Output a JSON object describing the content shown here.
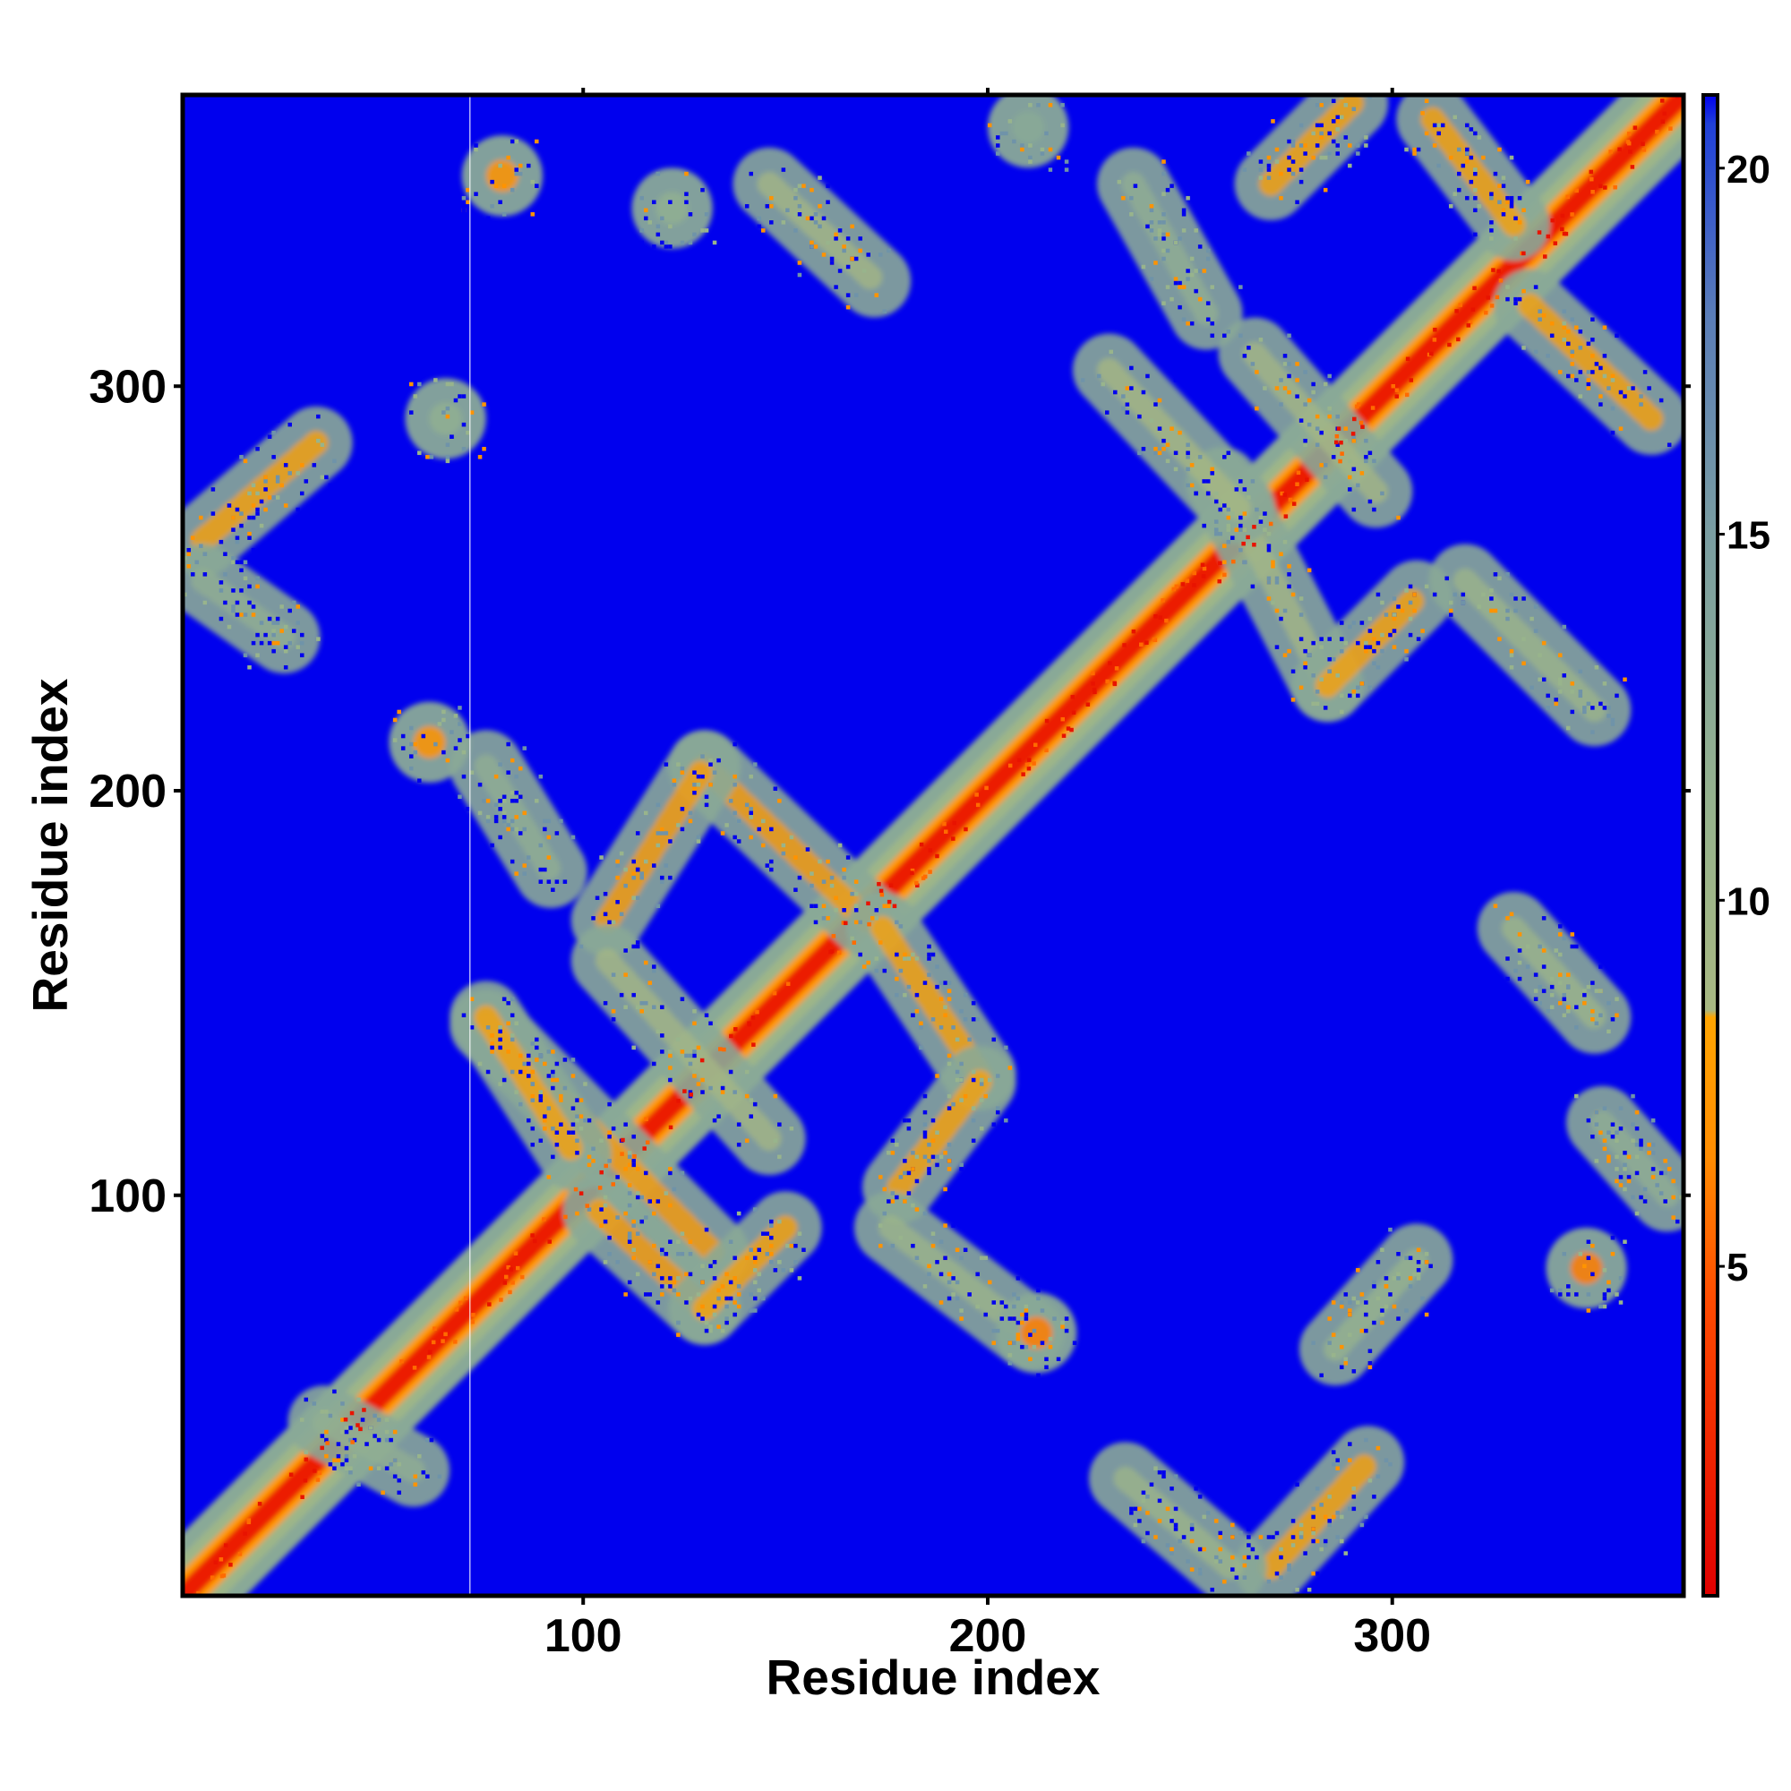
{
  "chart_data": {
    "type": "heatmap",
    "title": "",
    "xlabel": "Residue index",
    "ylabel": "Residue index",
    "xlim": [
      1,
      372
    ],
    "ylim": [
      1,
      372
    ],
    "x_ticks": [
      100,
      200,
      300
    ],
    "y_ticks": [
      100,
      200,
      300
    ],
    "colorbar": {
      "range": [
        0.5,
        21
      ],
      "ticks": [
        5,
        10,
        15,
        20
      ],
      "stops": [
        {
          "value": 0.5,
          "color": "#e00000"
        },
        {
          "value": 4.5,
          "color": "#ff4a00"
        },
        {
          "value": 6.5,
          "color": "#ff8c00"
        },
        {
          "value": 8.4,
          "color": "#ffa500"
        },
        {
          "value": 8.5,
          "color": "#a8b882"
        },
        {
          "value": 11.0,
          "color": "#98b48c"
        },
        {
          "value": 15.0,
          "color": "#7a9ea2"
        },
        {
          "value": 18.0,
          "color": "#5a7db8"
        },
        {
          "value": 20.6,
          "color": "#2040d8"
        },
        {
          "value": 21.0,
          "color": "#0000ee"
        }
      ]
    },
    "background_value": 21,
    "background_color": "#0000ee",
    "diagonal": {
      "band_halfwidth": 11,
      "core_value": 2
    },
    "contact_bands": [
      {
        "x": [
          76,
          132
        ],
        "y": [
          142,
          86
        ],
        "value": 7.5
      },
      {
        "x": [
          130,
          170
        ],
        "y": [
          206,
          168
        ],
        "value": 7.5
      },
      {
        "x": [
          106,
          130
        ],
        "y": [
          168,
          206
        ],
        "value": 7.5
      },
      {
        "x": [
          174,
          198
        ],
        "y": [
          166,
          130
        ],
        "value": 8
      },
      {
        "x": [
          198,
          178
        ],
        "y": [
          128,
          102
        ],
        "value": 8
      },
      {
        "x": [
          106,
          146
        ],
        "y": [
          158,
          114
        ],
        "value": 9
      },
      {
        "x": [
          104,
          130
        ],
        "y": [
          96,
          72
        ],
        "value": 7.5
      },
      {
        "x": [
          130,
          150
        ],
        "y": [
          72,
          92
        ],
        "value": 8
      },
      {
        "x": [
          76,
          98
        ],
        "y": [
          144,
          110
        ],
        "value": 8
      },
      {
        "x": [
          176,
          210
        ],
        "y": [
          92,
          66
        ],
        "value": 10
      },
      {
        "x": [
          270,
          294
        ],
        "y": [
          8,
          34
        ],
        "value": 8
      },
      {
        "x": [
          260,
          234
        ],
        "y": [
          8,
          30
        ],
        "value": 10
      },
      {
        "x": [
          286,
          306
        ],
        "y": [
          62,
          84
        ],
        "value": 11
      },
      {
        "x": [
          258,
          284
        ],
        "y": [
          276,
          226
        ],
        "value": 9
      },
      {
        "x": [
          284,
          306
        ],
        "y": [
          226,
          248
        ],
        "value": 8
      },
      {
        "x": [
          230,
          262
        ],
        "y": [
          304,
          270
        ],
        "value": 8.5
      },
      {
        "x": [
          266,
          296
        ],
        "y": [
          308,
          274
        ],
        "value": 9
      },
      {
        "x": [
          270,
          290
        ],
        "y": [
          350,
          370
        ],
        "value": 8
      },
      {
        "x": [
          310,
          330
        ],
        "y": [
          366,
          340
        ],
        "value": 8
      },
      {
        "x": [
          334,
          364
        ],
        "y": [
          320,
          292
        ],
        "value": 8
      },
      {
        "x": [
          318,
          350
        ],
        "y": [
          252,
          220
        ],
        "value": 10
      },
      {
        "x": [
          6,
          34
        ],
        "y": [
          262,
          286
        ],
        "value": 8
      },
      {
        "x": 66,
        "y": 292,
        "value": 12
      },
      {
        "x": [
          146,
          172
        ],
        "y": [
          350,
          326
        ],
        "value": 9
      },
      {
        "x": 122,
        "y": 344,
        "value": 12
      },
      {
        "x": 80,
        "y": 352,
        "value": 7
      },
      {
        "x": 348,
        "y": 82,
        "value": 6
      },
      {
        "x": 212,
        "y": 66,
        "value": 6
      },
      {
        "x": 62,
        "y": 212,
        "value": 7
      },
      {
        "x": [
          76,
          92
        ],
        "y": [
          206,
          180
        ],
        "value": 12
      },
      {
        "x": [
          236,
          254
        ],
        "y": [
          350,
          318
        ],
        "value": 12
      },
      {
        "x": [
          330,
          350
        ],
        "y": [
          166,
          144
        ],
        "value": 10
      },
      {
        "x": [
          352,
          368
        ],
        "y": [
          118,
          100
        ],
        "value": 12
      },
      {
        "x": [
          6,
          26
        ],
        "y": [
          252,
          238
        ],
        "value": 12
      },
      {
        "x": [
          36,
          58
        ],
        "y": [
          44,
          32
        ],
        "value": 12
      },
      {
        "x": 210,
        "y": 364,
        "value": 13
      }
    ]
  }
}
